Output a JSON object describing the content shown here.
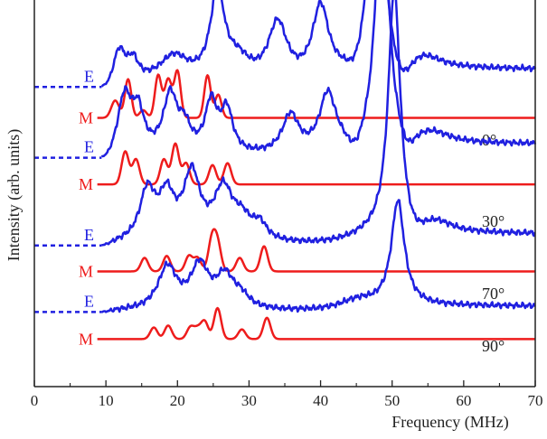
{
  "chart_data": {
    "type": "line",
    "title": "",
    "xlabel": "Frequency (MHz)",
    "ylabel": "Intensity (arb. units)",
    "xlim": [
      0,
      70
    ],
    "x_ticks": [
      "0",
      "10",
      "20",
      "30",
      "40",
      "50",
      "60",
      "70"
    ],
    "x_tick_values": [
      0,
      10,
      20,
      30,
      40,
      50,
      60,
      70
    ],
    "grid": false,
    "legend": "none",
    "colors": {
      "E": "#2020e0",
      "M": "#ee1c1c",
      "axis": "#222222"
    },
    "series": [
      {
        "angle": "0°",
        "tag": "E",
        "kind": "E",
        "baseline": 0.775,
        "peaks": [
          [
            11.8,
            1.1,
            0.09
          ],
          [
            13.8,
            0.9,
            0.05
          ],
          [
            19.5,
            2.6,
            0.07
          ],
          [
            25.6,
            1.2,
            0.23
          ],
          [
            28.5,
            2.0,
            0.05
          ],
          [
            34.0,
            1.6,
            0.15
          ],
          [
            40.0,
            1.4,
            0.19
          ],
          [
            47.8,
            1.0,
            0.73
          ],
          [
            55.0,
            2.5,
            0.02
          ]
        ],
        "dips": [
          [
            44.8,
            1.0,
            -0.03
          ],
          [
            51.3,
            1.2,
            -0.06
          ]
        ],
        "tail": 0.045
      },
      {
        "angle": "0°",
        "tag": "M",
        "kind": "M",
        "baseline": 0.695,
        "peaks": [
          [
            11.3,
            0.55,
            0.045
          ],
          [
            13.1,
            0.45,
            0.1
          ],
          [
            15.2,
            0.5,
            0.02
          ],
          [
            17.3,
            0.45,
            0.11
          ],
          [
            18.7,
            0.5,
            0.1
          ],
          [
            20.0,
            0.45,
            0.12
          ],
          [
            24.2,
            0.45,
            0.11
          ],
          [
            25.7,
            0.45,
            0.06
          ]
        ]
      },
      {
        "angle": "30°",
        "tag": "E",
        "kind": "E",
        "baseline": 0.592,
        "peaks": [
          [
            12.6,
            1.2,
            0.15
          ],
          [
            14.5,
            1.0,
            0.1
          ],
          [
            19.0,
            1.2,
            0.15
          ],
          [
            21.0,
            1.0,
            0.06
          ],
          [
            24.7,
            1.0,
            0.13
          ],
          [
            26.9,
            1.0,
            0.11
          ],
          [
            35.8,
            1.4,
            0.1
          ],
          [
            41.0,
            1.4,
            0.15
          ],
          [
            48.6,
            1.0,
            0.71
          ],
          [
            56.0,
            2.5,
            0.02
          ]
        ],
        "dips": [
          [
            44.9,
            1.0,
            -0.04
          ],
          [
            52.0,
            1.1,
            -0.05
          ]
        ],
        "tail": 0.035
      },
      {
        "angle": "30°",
        "tag": "M",
        "kind": "M",
        "baseline": 0.523,
        "peaks": [
          [
            12.7,
            0.5,
            0.085
          ],
          [
            14.2,
            0.5,
            0.065
          ],
          [
            18.1,
            0.5,
            0.065
          ],
          [
            19.7,
            0.5,
            0.105
          ],
          [
            21.2,
            0.5,
            0.055
          ],
          [
            24.9,
            0.5,
            0.05
          ],
          [
            27.0,
            0.5,
            0.055
          ]
        ]
      },
      {
        "angle": "70°",
        "tag": "E",
        "kind": "E",
        "baseline": 0.365,
        "peaks": [
          [
            15.8,
            1.3,
            0.13
          ],
          [
            18.5,
            1.3,
            0.11
          ],
          [
            22.0,
            1.4,
            0.17
          ],
          [
            26.4,
            1.6,
            0.13
          ],
          [
            29.0,
            1.6,
            0.05
          ],
          [
            31.5,
            1.2,
            0.04
          ],
          [
            50.3,
            1.0,
            0.64
          ],
          [
            56.5,
            2.5,
            0.02
          ]
        ],
        "dips": [
          [
            53.0,
            1.2,
            -0.03
          ]
        ],
        "tail": 0.03
      },
      {
        "angle": "70°",
        "tag": "M",
        "kind": "M",
        "baseline": 0.298,
        "peaks": [
          [
            15.4,
            0.5,
            0.035
          ],
          [
            18.5,
            0.5,
            0.04
          ],
          [
            21.6,
            0.5,
            0.04
          ],
          [
            22.8,
            0.5,
            0.035
          ],
          [
            24.8,
            0.5,
            0.08
          ],
          [
            25.6,
            0.5,
            0.07
          ],
          [
            28.7,
            0.5,
            0.035
          ],
          [
            32.1,
            0.5,
            0.065
          ]
        ]
      },
      {
        "angle": "90°",
        "tag": "E",
        "kind": "E",
        "baseline": 0.193,
        "peaks": [
          [
            18.6,
            1.6,
            0.11
          ],
          [
            23.1,
            1.5,
            0.11
          ],
          [
            26.6,
            1.5,
            0.08
          ],
          [
            28.8,
            1.5,
            0.03
          ],
          [
            45.0,
            3.0,
            0.02
          ],
          [
            50.8,
            1.1,
            0.27
          ]
        ],
        "dips": [],
        "tail": 0.015
      },
      {
        "angle": "90°",
        "tag": "M",
        "kind": "M",
        "baseline": 0.123,
        "peaks": [
          [
            16.7,
            0.5,
            0.03
          ],
          [
            18.7,
            0.5,
            0.035
          ],
          [
            21.8,
            0.5,
            0.03
          ],
          [
            22.8,
            0.5,
            0.025
          ],
          [
            23.8,
            0.5,
            0.045
          ],
          [
            25.6,
            0.5,
            0.08
          ],
          [
            29.0,
            0.5,
            0.025
          ],
          [
            32.5,
            0.5,
            0.055
          ]
        ]
      }
    ]
  }
}
